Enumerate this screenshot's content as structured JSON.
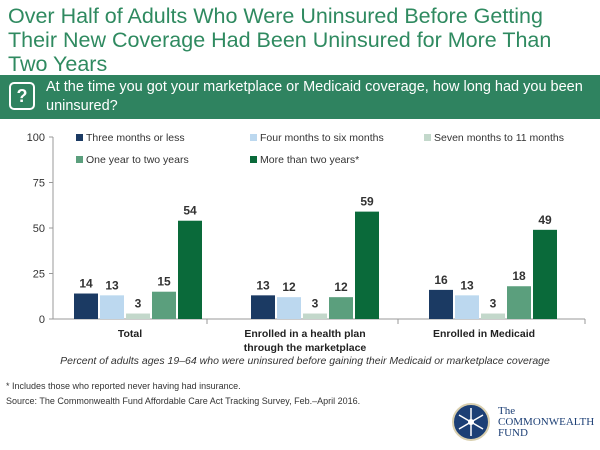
{
  "title": "Over Half of Adults Who Were Uninsured Before Getting Their New Coverage Had Been Uninsured for More Than Two Years",
  "question": "At the time you got your marketplace or Medicaid coverage, how long had you been uninsured?",
  "question_icon": "question-speech-bubble-icon",
  "chart_data": {
    "type": "bar",
    "categories": [
      "Total",
      "Enrolled in a health plan through the marketplace",
      "Enrolled in Medicaid"
    ],
    "category_lines": [
      [
        "Total"
      ],
      [
        "Enrolled in a health plan",
        "through the marketplace"
      ],
      [
        "Enrolled in Medicaid"
      ]
    ],
    "series": [
      {
        "name": "Three months or less",
        "values": [
          14,
          13,
          16
        ],
        "color": "#1b3a63"
      },
      {
        "name": "Four months to six months",
        "values": [
          13,
          12,
          13
        ],
        "color": "#bcd8ef"
      },
      {
        "name": "Seven months to 11 months",
        "values": [
          3,
          3,
          3
        ],
        "color": "#c3d8cb"
      },
      {
        "name": "One year to two years",
        "values": [
          15,
          12,
          18
        ],
        "color": "#5b9f7d"
      },
      {
        "name": "More than two years*",
        "values": [
          54,
          59,
          49
        ],
        "color": "#0a6a3a"
      }
    ],
    "yticks": [
      0,
      25,
      50,
      75,
      100
    ],
    "ylim": [
      0,
      100
    ],
    "xlabel": "Percent of adults ages 19–64 who were uninsured before gaining their Medicaid or marketplace coverage",
    "legend_position": "top",
    "grid": false
  },
  "footnote": "* Includes those who reported never having had insurance.",
  "source": "Source: The Commonwealth Fund Affordable Care Act Tracking Survey, Feb.–April 2016.",
  "logo": {
    "line1": "The",
    "line2": "COMMONWEALTH",
    "line3": "FUND"
  }
}
